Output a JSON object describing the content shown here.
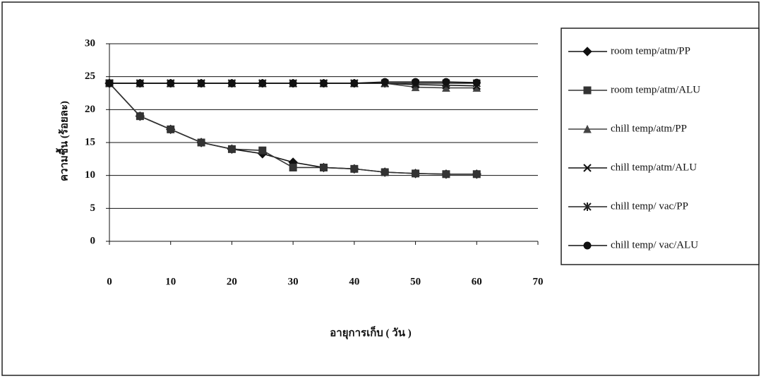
{
  "chart_data": {
    "type": "line",
    "x_label": "อายุการเก็บ ( วัน )",
    "y_label": "ความชื้น (ร้อยละ)",
    "x": [
      0,
      5,
      10,
      15,
      20,
      25,
      30,
      35,
      40,
      45,
      50,
      55,
      60
    ],
    "series": [
      {
        "name": "room temp/atm/PP",
        "color": "#111111",
        "marker": "diamond",
        "values": [
          24,
          19,
          17,
          15,
          14,
          13.3,
          12,
          11.2,
          11,
          10.5,
          10.3,
          10.2,
          10.2
        ]
      },
      {
        "name": "room temp/atm/ALU",
        "color": "#333333",
        "marker": "square",
        "values": [
          24,
          19,
          17,
          15,
          14,
          13.8,
          11.2,
          11.2,
          11,
          10.5,
          10.3,
          10.2,
          10.2
        ]
      },
      {
        "name": "chill temp/atm/PP",
        "color": "#444444",
        "marker": "triangle",
        "values": [
          24,
          24,
          24,
          24,
          24,
          24,
          24,
          24,
          24,
          24,
          23.4,
          23.3,
          23.3
        ]
      },
      {
        "name": "chill temp/atm/ALU",
        "color": "#111111",
        "marker": "x",
        "values": [
          24,
          24,
          24,
          24,
          24,
          24,
          24,
          24,
          24,
          24,
          23.8,
          23.7,
          23.6
        ]
      },
      {
        "name": "chill temp/ vac/PP",
        "color": "#222222",
        "marker": "asterisk",
        "values": [
          24,
          24,
          24,
          24,
          24,
          24,
          24,
          24,
          24,
          24,
          24,
          24,
          24
        ]
      },
      {
        "name": "chill temp/ vac/ALU",
        "color": "#111111",
        "marker": "circle",
        "values": [
          24,
          24,
          24,
          24,
          24,
          24,
          24,
          24,
          24,
          24.2,
          24.2,
          24.2,
          24.1
        ]
      }
    ],
    "xlim": [
      0,
      70
    ],
    "xticks": [
      0,
      10,
      20,
      30,
      40,
      50,
      60,
      70
    ],
    "ylim": [
      0,
      30
    ],
    "yticks": [
      0,
      5,
      10,
      15,
      20,
      25,
      30
    ],
    "grid": true,
    "legend": "right"
  }
}
